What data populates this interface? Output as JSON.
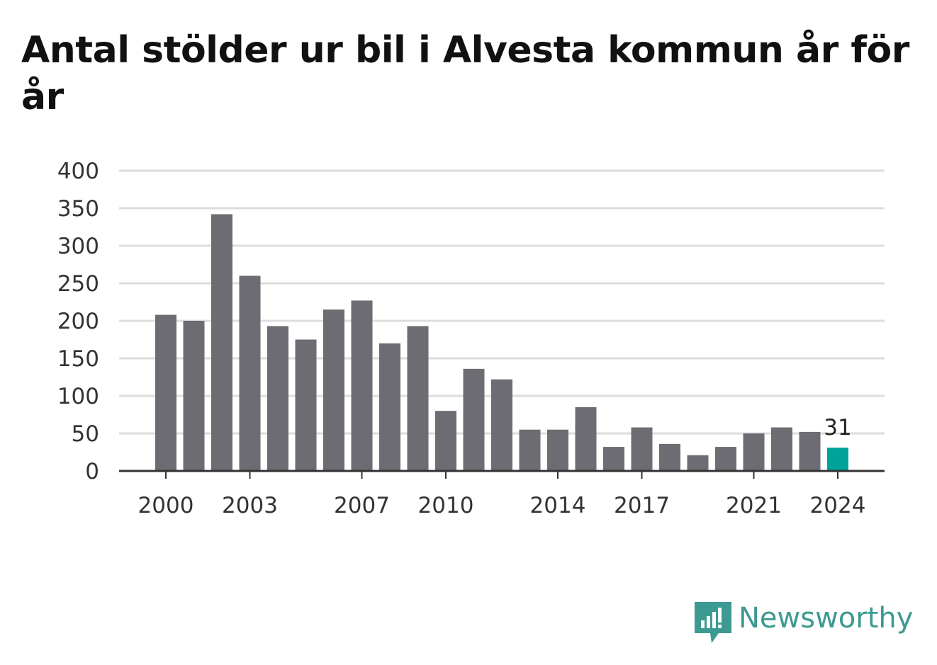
{
  "title": "Antal stölder ur bil i Alvesta kommun år för år",
  "brand": {
    "name": "Newsworthy",
    "color": "#3c9a92"
  },
  "colors": {
    "bar": "#6d6c72",
    "highlight": "#00a39a",
    "grid": "#dddddd",
    "axis": "#333333"
  },
  "chart_data": {
    "type": "bar",
    "categories": [
      "2000",
      "2001",
      "2002",
      "2003",
      "2004",
      "2005",
      "2006",
      "2007",
      "2008",
      "2009",
      "2010",
      "2011",
      "2012",
      "2013",
      "2014",
      "2015",
      "2016",
      "2017",
      "2018",
      "2019",
      "2020",
      "2021",
      "2022",
      "2023",
      "2024"
    ],
    "values": [
      208,
      200,
      342,
      260,
      193,
      175,
      215,
      227,
      170,
      193,
      80,
      136,
      122,
      55,
      55,
      85,
      32,
      58,
      36,
      21,
      32,
      50,
      58,
      52,
      31
    ],
    "x_tick_labels": [
      "2000",
      "2003",
      "2007",
      "2010",
      "2014",
      "2017",
      "2021",
      "2024"
    ],
    "y_ticks": [
      0,
      50,
      100,
      150,
      200,
      250,
      300,
      350,
      400
    ],
    "ylim": [
      0,
      400
    ],
    "highlight_category": "2024",
    "data_labels": [
      {
        "category": "2024",
        "text": "31"
      }
    ],
    "grid": true,
    "xlabel": "",
    "ylabel": ""
  }
}
